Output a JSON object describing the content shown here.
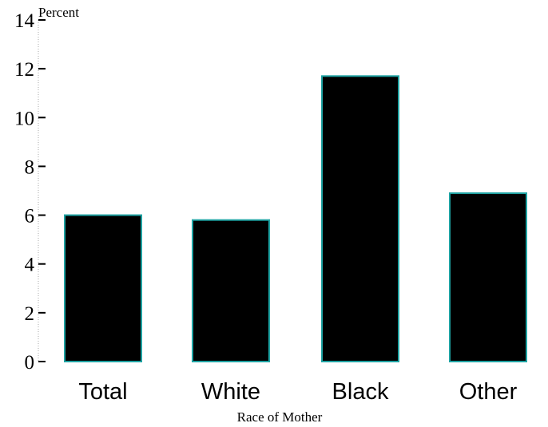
{
  "chart_data": {
    "type": "bar",
    "categories": [
      "Total",
      "White",
      "Black",
      "Other"
    ],
    "values": [
      6.0,
      5.8,
      11.7,
      6.9
    ],
    "title": "",
    "xlabel": "Race of Mother",
    "ylabel": "Percent",
    "ylim": [
      0,
      14
    ],
    "yticks": [
      "0",
      "2",
      "4",
      "6",
      "8",
      "10",
      "12",
      "14"
    ],
    "grid": false,
    "legend": "none",
    "colors": {
      "bar_fill": "#000000",
      "bar_edge": "#1fa3a3",
      "axis": "#aaaaaa",
      "tick": "#000000"
    }
  }
}
